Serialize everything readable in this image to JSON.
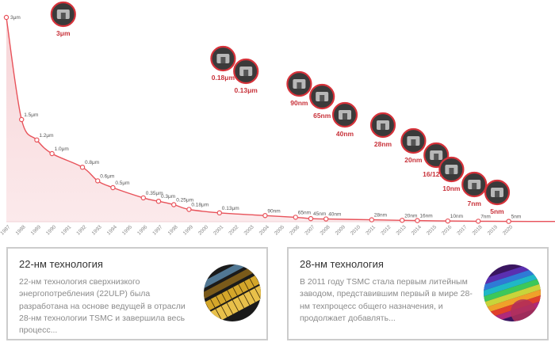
{
  "chart_data": {
    "type": "area",
    "x_labels": [
      "1987",
      "1988",
      "1989",
      "1990",
      "1991",
      "1992",
      "1993",
      "1994",
      "1995",
      "1996",
      "1997",
      "1998",
      "1999",
      "2000",
      "2001",
      "2002",
      "2003",
      "2004",
      "2005",
      "2006",
      "2007",
      "2008",
      "2009",
      "2010",
      "2011",
      "2012",
      "2013",
      "2014",
      "2015",
      "2016",
      "2017",
      "2018",
      "2019",
      "2020"
    ],
    "points": [
      {
        "x": "1987",
        "y": 3.0,
        "label": "3μm"
      },
      {
        "x": "1988",
        "y": 1.5,
        "label": "1.5μm"
      },
      {
        "x": "1989",
        "y": 1.2,
        "label": "1.2μm"
      },
      {
        "x": "1990",
        "y": 1.0,
        "label": "1.0μm"
      },
      {
        "x": "1992",
        "y": 0.8,
        "label": "0.8μm"
      },
      {
        "x": "1993",
        "y": 0.6,
        "label": "0.6μm"
      },
      {
        "x": "1994",
        "y": 0.5,
        "label": "0.5μm"
      },
      {
        "x": "1996",
        "y": 0.35,
        "label": "0.35μm"
      },
      {
        "x": "1997",
        "y": 0.3,
        "label": "0.3μm"
      },
      {
        "x": "1998",
        "y": 0.25,
        "label": "0.25μm"
      },
      {
        "x": "1999",
        "y": 0.18,
        "label": "0.18μm"
      },
      {
        "x": "2001",
        "y": 0.13,
        "label": "0.13μm"
      },
      {
        "x": "2004",
        "y": 0.09,
        "label": "90nm"
      },
      {
        "x": "2006",
        "y": 0.065,
        "label": "65nm"
      },
      {
        "x": "2007",
        "y": 0.045,
        "label": "45nm"
      },
      {
        "x": "2008",
        "y": 0.04,
        "label": "40nm"
      },
      {
        "x": "2011",
        "y": 0.028,
        "label": "28nm"
      },
      {
        "x": "2013",
        "y": 0.02,
        "label": "20nm"
      },
      {
        "x": "2014",
        "y": 0.016,
        "label": "16nm"
      },
      {
        "x": "2016",
        "y": 0.01,
        "label": "10nm"
      },
      {
        "x": "2018",
        "y": 0.007,
        "label": "7nm"
      },
      {
        "x": "2020",
        "y": 0.005,
        "label": "5nm"
      }
    ],
    "ylim": [
      0,
      3
    ],
    "grid": false,
    "line_color": "#e8525a",
    "fill_color": "#f6d3d6",
    "badges": [
      {
        "label": "3μm",
        "x": "1988.5"
      },
      {
        "label": "0.18μm",
        "x": "1999"
      },
      {
        "label": "0.13μm",
        "x": "2000.5"
      },
      {
        "label": "90nm",
        "x": "2004"
      },
      {
        "label": "65nm",
        "x": "2005.5"
      },
      {
        "label": "40nm",
        "x": "2007"
      },
      {
        "label": "28nm",
        "x": "2009.5"
      },
      {
        "label": "20nm",
        "x": "2011.5"
      },
      {
        "label": "16/12nm",
        "x": "2013"
      },
      {
        "label": "10nm",
        "x": "2014"
      },
      {
        "label": "7nm",
        "x": "2015.5"
      },
      {
        "label": "5nm",
        "x": "2017"
      }
    ]
  },
  "cards": [
    {
      "title": "22-нм технология",
      "text": "22-нм технология сверхнизкого энергопотребления (22ULP) была разработана на основе ведущей в отрасли 28-нм технологии TSMC и завершила весь процесс..."
    },
    {
      "title": "28-нм технология",
      "text": "В 2011 году TSMC стала первым литейным заводом, представившим первый в мире 28-нм техпроцесс общего назначения, и продолжает добавлять..."
    }
  ]
}
